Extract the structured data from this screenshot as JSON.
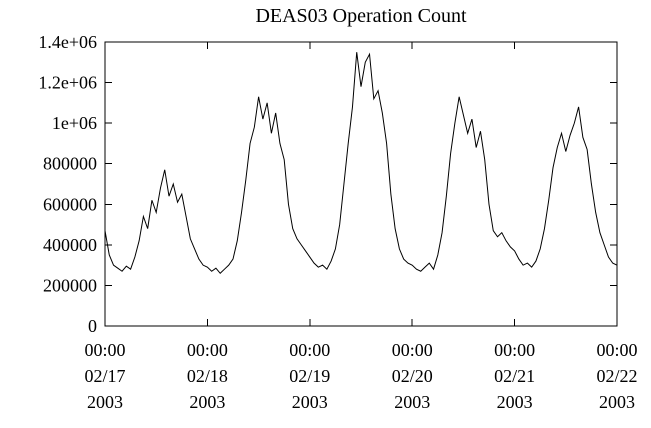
{
  "page": {
    "background": "#ffffff",
    "foreground": "#000000"
  },
  "chart_data": {
    "type": "line",
    "title": "DEAS03 Operation Count",
    "xlabel": "",
    "ylabel": "",
    "grid": false,
    "legend": "none",
    "line_color": "#000000",
    "x_unit": "hours since first tick (02/17 2003 00:00)",
    "x_start": 0,
    "x_step_hours": 1,
    "xlim": [
      0,
      120
    ],
    "ylim": [
      0,
      1400000
    ],
    "y_ticks": [
      {
        "value": 0,
        "label": "0"
      },
      {
        "value": 200000,
        "label": "200000"
      },
      {
        "value": 400000,
        "label": "400000"
      },
      {
        "value": 600000,
        "label": "600000"
      },
      {
        "value": 800000,
        "label": "800000"
      },
      {
        "value": 1000000,
        "label": "1e+06"
      },
      {
        "value": 1200000,
        "label": "1.2e+06"
      },
      {
        "value": 1400000,
        "label": "1.4e+06"
      }
    ],
    "x_ticks": [
      {
        "value": 0,
        "label_lines": [
          "00:00",
          "02/17",
          "2003"
        ]
      },
      {
        "value": 24,
        "label_lines": [
          "00:00",
          "02/18",
          "2003"
        ]
      },
      {
        "value": 48,
        "label_lines": [
          "00:00",
          "02/19",
          "2003"
        ]
      },
      {
        "value": 72,
        "label_lines": [
          "00:00",
          "02/20",
          "2003"
        ]
      },
      {
        "value": 96,
        "label_lines": [
          "00:00",
          "02/21",
          "2003"
        ]
      },
      {
        "value": 120,
        "label_lines": [
          "00:00",
          "02/22",
          "2003"
        ]
      }
    ],
    "series": [
      {
        "name": "DEAS03 operation count",
        "values": [
          470000,
          350000,
          300000,
          285000,
          270000,
          295000,
          280000,
          340000,
          420000,
          540000,
          480000,
          620000,
          560000,
          680000,
          770000,
          640000,
          700000,
          610000,
          650000,
          540000,
          430000,
          380000,
          330000,
          300000,
          290000,
          270000,
          285000,
          260000,
          280000,
          300000,
          330000,
          420000,
          560000,
          720000,
          900000,
          980000,
          1130000,
          1020000,
          1100000,
          950000,
          1050000,
          900000,
          820000,
          600000,
          480000,
          430000,
          400000,
          370000,
          340000,
          310000,
          290000,
          300000,
          280000,
          320000,
          380000,
          500000,
          700000,
          900000,
          1080000,
          1350000,
          1180000,
          1300000,
          1340000,
          1120000,
          1160000,
          1050000,
          900000,
          650000,
          480000,
          380000,
          330000,
          310000,
          300000,
          280000,
          270000,
          290000,
          310000,
          280000,
          350000,
          460000,
          640000,
          850000,
          1000000,
          1130000,
          1040000,
          950000,
          1020000,
          880000,
          960000,
          820000,
          600000,
          470000,
          440000,
          460000,
          420000,
          390000,
          370000,
          330000,
          300000,
          310000,
          290000,
          320000,
          380000,
          480000,
          620000,
          780000,
          880000,
          950000,
          860000,
          940000,
          1000000,
          1080000,
          930000,
          870000,
          700000,
          560000,
          460000,
          400000,
          340000,
          310000,
          300000
        ]
      }
    ]
  }
}
